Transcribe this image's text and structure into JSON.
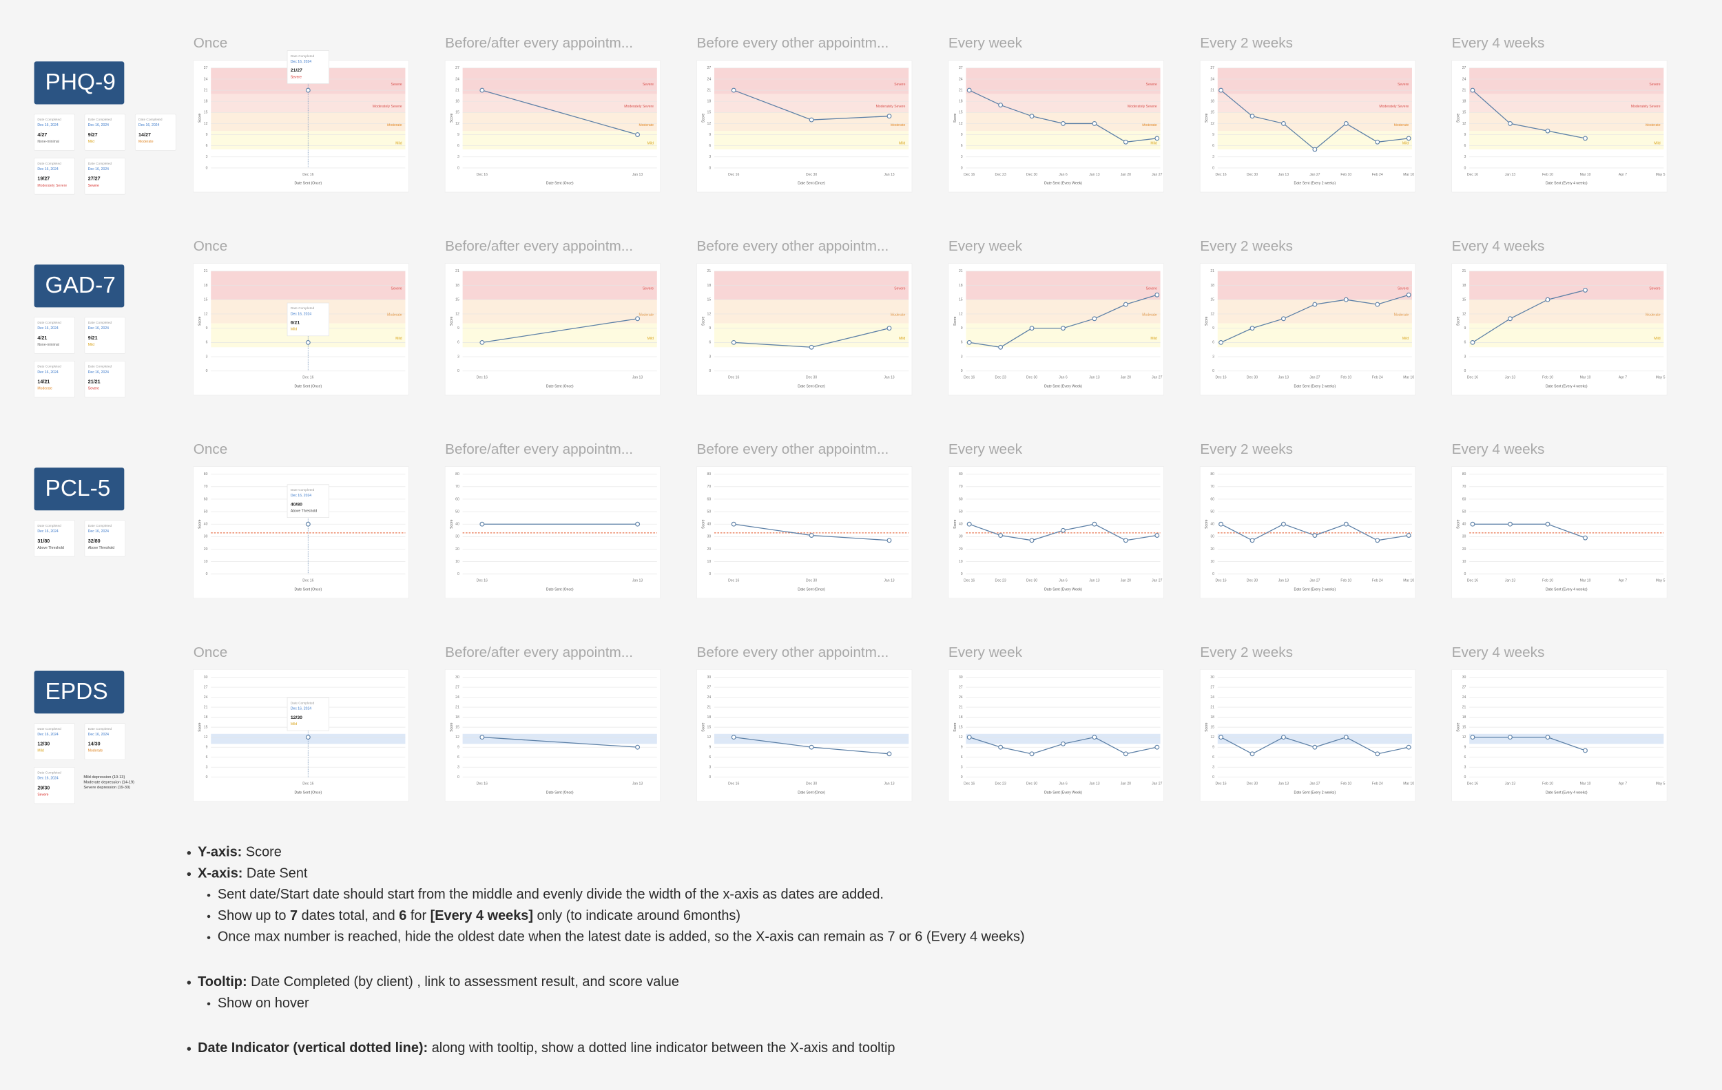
{
  "y_label": "Score",
  "schedules": [
    {
      "title": "Once",
      "x_label": "Date Sent (Once)",
      "dates": [
        "Dec 16"
      ]
    },
    {
      "title": "Before/after every appointm...",
      "x_label": "Date Sent (Once)",
      "dates": [
        "Dec 16",
        "Jan 13"
      ]
    },
    {
      "title": "Before every other appointm...",
      "x_label": "Date Sent (Once)",
      "dates": [
        "Dec 16",
        "Dec 30",
        "Jan 13"
      ]
    },
    {
      "title": "Every week",
      "x_label": "Date Sent (Every Week)",
      "dates": [
        "Dec 16",
        "Dec 23",
        "Dec 30",
        "Jan 6",
        "Jan 13",
        "Jan 20",
        "Jan 27"
      ]
    },
    {
      "title": "Every 2 weeks",
      "x_label": "Date Sent (Every 2 weeks)",
      "dates": [
        "Dec 16",
        "Dec 30",
        "Jan 13",
        "Jan 27",
        "Feb 10",
        "Feb 24",
        "Mar 10"
      ]
    },
    {
      "title": "Every 4 weeks",
      "x_label": "Date Sent (Every 4 weeks)",
      "dates": [
        "Dec 16",
        "Jan 13",
        "Feb 10",
        "Mar 10",
        "Apr 7",
        "May 5"
      ]
    }
  ],
  "rows": [
    {
      "name": "PHQ-9",
      "ylim": [
        0,
        27
      ],
      "yticks": [
        0,
        3,
        6,
        9,
        12,
        15,
        18,
        21,
        24,
        27
      ],
      "bands": [
        {
          "label": "Severe",
          "from": 20,
          "to": 27,
          "color": "#f8d6d6",
          "label_color": "#d9534f"
        },
        {
          "label": "Moderately Severe",
          "from": 15,
          "to": 20,
          "color": "#fbe4e0",
          "label_color": "#d9534f"
        },
        {
          "label": "Moderate",
          "from": 10,
          "to": 15,
          "color": "#fdeedd",
          "label_color": "#e08a2c"
        },
        {
          "label": "Mild",
          "from": 5,
          "to": 10,
          "color": "#fefbe0",
          "label_color": "#d9a520"
        }
      ],
      "cards": [
        {
          "label": "Date Completed",
          "date": "Dec 16, 2024",
          "score": "4/27",
          "status": "None-minimal",
          "color": "#666666"
        },
        {
          "label": "Date Completed",
          "date": "Dec 16, 2024",
          "score": "9/27",
          "status": "Mild",
          "color": "#d9a520"
        },
        {
          "label": "Date Completed",
          "date": "Dec 16, 2024",
          "score": "14/27",
          "status": "Moderate",
          "color": "#e08a2c"
        },
        {
          "label": "Date Completed",
          "date": "Dec 16, 2024",
          "score": "19/27",
          "status": "Moderately Severe",
          "color": "#d9534f"
        },
        {
          "label": "Date Completed",
          "date": "Dec 16, 2024",
          "score": "27/27",
          "status": "Severe",
          "color": "#d9302c"
        }
      ],
      "charts": [
        {
          "values": [
            21
          ],
          "tooltip": {
            "label": "Date Completed",
            "date": "Dec 16, 2024",
            "score": "21/27",
            "status": "Severe",
            "color": "#d9302c"
          }
        },
        {
          "values": [
            21,
            9
          ]
        },
        {
          "values": [
            21,
            13,
            14
          ]
        },
        {
          "values": [
            21,
            17,
            14,
            12,
            12,
            7,
            8
          ]
        },
        {
          "values": [
            21,
            14,
            12,
            5,
            12,
            7,
            8
          ]
        },
        {
          "values": [
            21,
            12,
            10,
            8
          ]
        }
      ]
    },
    {
      "name": "GAD-7",
      "ylim": [
        0,
        21
      ],
      "yticks": [
        0,
        3,
        6,
        9,
        12,
        15,
        18,
        21
      ],
      "bands": [
        {
          "label": "Severe",
          "from": 15,
          "to": 21,
          "color": "#f8d6d6",
          "label_color": "#d9534f"
        },
        {
          "label": "Moderate",
          "from": 10,
          "to": 15,
          "color": "#fdeedd",
          "label_color": "#e08a2c"
        },
        {
          "label": "Mild",
          "from": 5,
          "to": 10,
          "color": "#fefbe0",
          "label_color": "#d9a520"
        }
      ],
      "cards": [
        {
          "label": "Date Completed",
          "date": "Dec 16, 2024",
          "score": "4/21",
          "status": "None-minimal",
          "color": "#666666"
        },
        {
          "label": "Date Completed",
          "date": "Dec 16, 2024",
          "score": "9/21",
          "status": "Mild",
          "color": "#d9a520"
        },
        {
          "label": "Date Completed",
          "date": "Dec 16, 2024",
          "score": "14/21",
          "status": "Moderate",
          "color": "#e08a2c"
        },
        {
          "label": "Date Completed",
          "date": "Dec 16, 2024",
          "score": "21/21",
          "status": "Severe",
          "color": "#d9302c"
        }
      ],
      "charts": [
        {
          "values": [
            6
          ],
          "tooltip": {
            "label": "Date Completed",
            "date": "Dec 16, 2024",
            "score": "6/21",
            "status": "Mild",
            "color": "#d9a520"
          }
        },
        {
          "values": [
            6,
            11
          ]
        },
        {
          "values": [
            6,
            5,
            9
          ]
        },
        {
          "values": [
            6,
            5,
            9,
            9,
            11,
            14,
            16
          ]
        },
        {
          "values": [
            6,
            9,
            11,
            14,
            15,
            14,
            16
          ]
        },
        {
          "values": [
            6,
            11,
            15,
            17
          ]
        }
      ]
    },
    {
      "name": "PCL-5",
      "ylim": [
        0,
        80
      ],
      "yticks": [
        0,
        10,
        20,
        30,
        40,
        50,
        60,
        70,
        80
      ],
      "threshold": 33,
      "threshold_color": "#e8744f",
      "bands": [],
      "cards": [
        {
          "label": "Date Completed",
          "date": "Dec 16, 2024",
          "score": "31/80",
          "status": "Above Threshold",
          "color": "#444444"
        },
        {
          "label": "Date Completed",
          "date": "Dec 16, 2024",
          "score": "32/80",
          "status": "Above Threshold",
          "color": "#444444"
        }
      ],
      "charts": [
        {
          "values": [
            40
          ],
          "tooltip": {
            "label": "Date Completed",
            "date": "Dec 16, 2024",
            "score": "40/80",
            "status": "Above Threshold",
            "color": "#444444"
          }
        },
        {
          "values": [
            40,
            40
          ]
        },
        {
          "values": [
            40,
            31,
            27
          ]
        },
        {
          "values": [
            40,
            31,
            27,
            35,
            40,
            27,
            31
          ]
        },
        {
          "values": [
            40,
            27,
            40,
            31,
            40,
            27,
            31
          ]
        },
        {
          "values": [
            40,
            40,
            40,
            29
          ]
        }
      ]
    },
    {
      "name": "EPDS",
      "ylim": [
        0,
        30
      ],
      "yticks": [
        0,
        3,
        6,
        9,
        12,
        15,
        18,
        21,
        24,
        27,
        30
      ],
      "bands": [
        {
          "from": 10,
          "to": 13,
          "color": "#dde8f7"
        }
      ],
      "cards": [
        {
          "label": "Date Completed",
          "date": "Dec 16, 2024",
          "score": "12/30",
          "status": "Mild",
          "color": "#d9a520"
        },
        {
          "label": "Date Completed",
          "date": "Dec 16, 2024",
          "score": "14/30",
          "status": "Moderate",
          "color": "#e08a2c"
        },
        {
          "label": "Date Completed",
          "date": "Dec 16, 2024",
          "score": "29/30",
          "status": "Severe",
          "color": "#d9302c"
        }
      ],
      "legend": [
        "Mild depression (10-13)",
        "Moderate depression (14-19)",
        "Severe depression (19-30)"
      ],
      "charts": [
        {
          "values": [
            12
          ],
          "tooltip": {
            "label": "Date Completed",
            "date": "Dec 16, 2024",
            "score": "12/30",
            "status": "Mild",
            "color": "#d9a520"
          }
        },
        {
          "values": [
            12,
            9
          ]
        },
        {
          "values": [
            12,
            9,
            7
          ]
        },
        {
          "values": [
            12,
            9,
            7,
            10,
            12,
            7,
            9
          ]
        },
        {
          "values": [
            12,
            7,
            12,
            9,
            12,
            7,
            9
          ]
        },
        {
          "values": [
            12,
            12,
            12,
            8
          ]
        }
      ]
    }
  ],
  "notes": [
    [
      {
        "level": 0,
        "parts": [
          {
            "text": "Y-axis:",
            "bold": true
          },
          {
            "text": " Score"
          }
        ]
      },
      {
        "level": 0,
        "parts": [
          {
            "text": "X-axis:",
            "bold": true
          },
          {
            "text": " Date Sent"
          }
        ]
      },
      {
        "level": 1,
        "parts": [
          {
            "text": "Sent date/Start date should start from the middle and evenly divide the width of the x-axis as dates are added."
          }
        ]
      },
      {
        "level": 1,
        "parts": [
          {
            "text": "Show up to "
          },
          {
            "text": "7",
            "bold": true
          },
          {
            "text": " dates total, and "
          },
          {
            "text": "6",
            "bold": true
          },
          {
            "text": " for "
          },
          {
            "text": "[Every 4 weeks]",
            "bold": true
          },
          {
            "text": " only (to indicate around 6months)"
          }
        ]
      },
      {
        "level": 1,
        "parts": [
          {
            "text": "Once max number is reached, hide the oldest date when the latest date is added, so the X-axis can remain as 7 or 6 (Every 4 weeks)"
          }
        ]
      }
    ],
    [
      {
        "level": 0,
        "parts": [
          {
            "text": "Tooltip:",
            "bold": true
          },
          {
            "text": " Date Completed (by client) , link to assessment result, and score value"
          }
        ]
      },
      {
        "level": 1,
        "parts": [
          {
            "text": "Show on hover"
          }
        ]
      }
    ],
    [
      {
        "level": 0,
        "parts": [
          {
            "text": "Date Indicator (vertical dotted line):",
            "bold": true
          },
          {
            "text": " along with tooltip, show a dotted line indicator between the X-axis and tooltip"
          }
        ]
      }
    ]
  ]
}
